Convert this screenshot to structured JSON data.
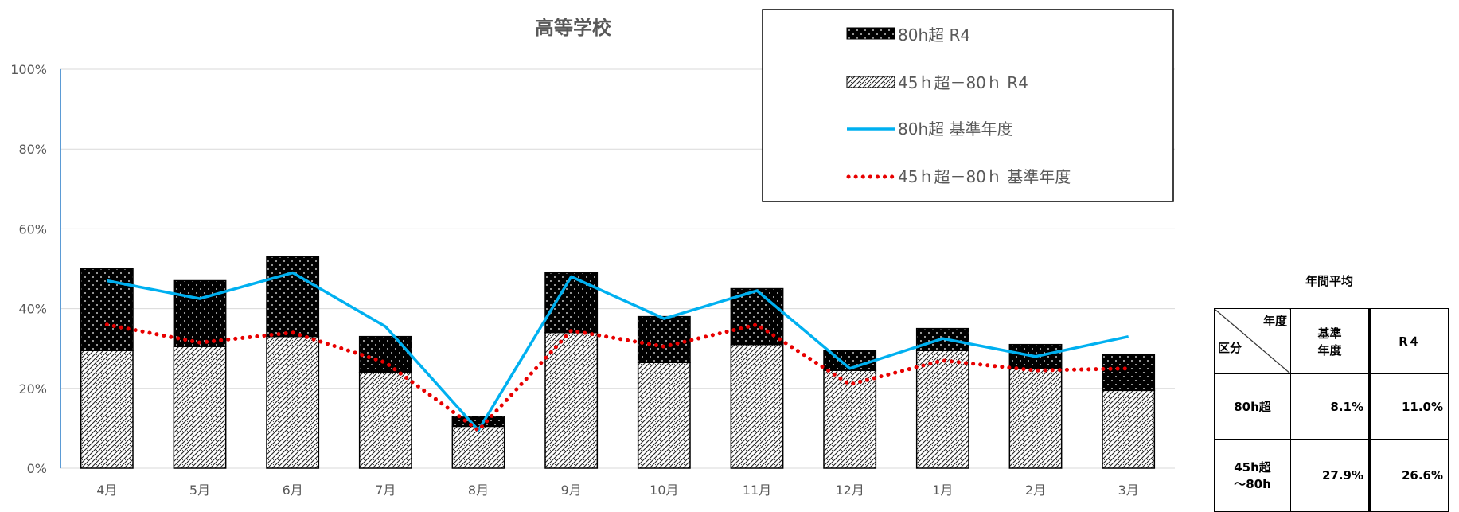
{
  "chart_data": {
    "type": "bar",
    "title": "高等学校",
    "categories": [
      "4月",
      "5月",
      "6月",
      "7月",
      "8月",
      "9月",
      "10月",
      "11月",
      "12月",
      "1月",
      "2月",
      "3月"
    ],
    "ylim": [
      0,
      100
    ],
    "yticks": [
      "0%",
      "20%",
      "40%",
      "60%",
      "80%",
      "100%"
    ],
    "grid": true,
    "legend_position": "top-right",
    "series": [
      {
        "name": "80h超 R4",
        "kind": "bar-stacked-top",
        "pattern": "black-dots",
        "values": [
          20.5,
          16.5,
          20.0,
          9.0,
          2.5,
          15.0,
          11.5,
          14.0,
          5.0,
          5.5,
          6.0,
          9.0
        ]
      },
      {
        "name": "45ｈ超－80ｈ R4",
        "kind": "bar-stacked-bottom",
        "pattern": "hatch",
        "values": [
          29.5,
          30.5,
          33.0,
          24.0,
          10.5,
          34.0,
          26.5,
          31.0,
          24.5,
          29.5,
          25.0,
          19.5
        ]
      },
      {
        "name": "80h超 基準年度",
        "kind": "line",
        "color": "#00b0f0",
        "values": [
          47.0,
          42.5,
          49.0,
          35.5,
          9.5,
          48.0,
          37.5,
          44.5,
          25.0,
          32.5,
          28.0,
          33.0
        ]
      },
      {
        "name": "45ｈ超－80ｈ 基準年度",
        "kind": "line-dotted",
        "color": "#e80000",
        "values": [
          36.0,
          31.5,
          34.0,
          26.5,
          9.5,
          34.5,
          30.5,
          36.0,
          21.0,
          27.0,
          24.5,
          25.0
        ]
      }
    ]
  },
  "legend": {
    "items": [
      "80h超 R4",
      "45ｈ超－80ｈ R4",
      "80h超 基準年度",
      "45ｈ超－80ｈ 基準年度"
    ]
  },
  "avg_table": {
    "title": "年間平均",
    "corner_top": "年度",
    "corner_bottom": "区分",
    "col1_line1": "基準",
    "col1_line2": "年度",
    "col2": "R４",
    "row1_label": "80h超",
    "row1_base": "8.1%",
    "row1_r4": "11.0%",
    "row2_label_line1": "45h超",
    "row2_label_line2": "～80h",
    "row2_base": "27.9%",
    "row2_r4": "26.6%"
  },
  "colors": {
    "line_80h": "#00b0f0",
    "line_45h": "#e80000",
    "grid": "#d9d9d9",
    "axis": "#5b9bd5",
    "text": "#595959"
  }
}
